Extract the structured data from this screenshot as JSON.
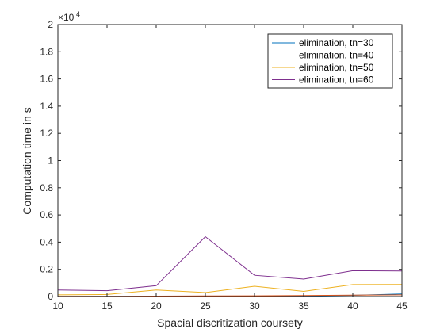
{
  "chart_data": {
    "type": "line",
    "title": "",
    "xlabel": "Spacial discritization coursety",
    "ylabel": "Computation time in s",
    "x": [
      10,
      15,
      20,
      25,
      30,
      35,
      40,
      45
    ],
    "xlim": [
      10,
      45
    ],
    "ylim": [
      0,
      20000
    ],
    "x_ticks": [
      10,
      15,
      20,
      25,
      30,
      35,
      40,
      45
    ],
    "y_ticks": [
      0,
      2000,
      4000,
      6000,
      8000,
      10000,
      12000,
      14000,
      16000,
      18000,
      20000
    ],
    "y_tick_labels": [
      "0",
      "0.2",
      "0.4",
      "0.6",
      "0.8",
      "1",
      "1.2",
      "1.4",
      "1.6",
      "1.8",
      "2"
    ],
    "y_exponent_base": "×10",
    "y_exponent_power": "4",
    "grid": false,
    "legend_position": "top-right",
    "series": [
      {
        "name": "elimination, tn=30",
        "color": "#0072BD",
        "values": [
          8,
          10,
          15,
          20,
          28,
          40,
          90,
          190
        ]
      },
      {
        "name": "elimination, tn=40",
        "color": "#D95319",
        "values": [
          12,
          18,
          30,
          45,
          55,
          70,
          100,
          120
        ]
      },
      {
        "name": "elimination, tn=50",
        "color": "#EDB120",
        "values": [
          120,
          150,
          480,
          290,
          760,
          380,
          880,
          890
        ]
      },
      {
        "name": "elimination, tn=60",
        "color": "#7E2F8E",
        "values": [
          480,
          430,
          800,
          4400,
          1560,
          1280,
          1900,
          1880
        ]
      }
    ]
  }
}
